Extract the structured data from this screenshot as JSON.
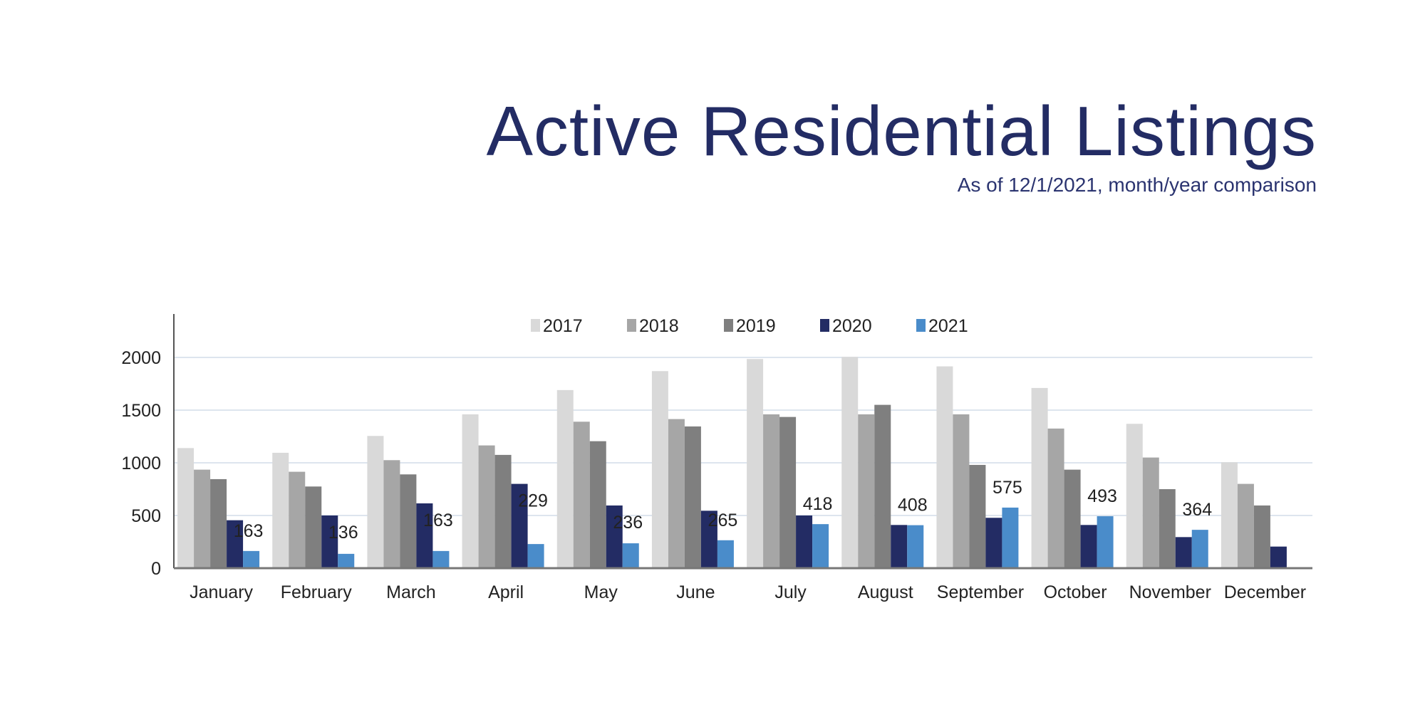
{
  "title": "Active Residential Listings",
  "subtitle": "As of 12/1/2021, month/year comparison",
  "chart_data": {
    "type": "bar",
    "title": "Active Residential Listings",
    "subtitle": "As of 12/1/2021, month/year comparison",
    "xlabel": "",
    "ylabel": "",
    "ylim": [
      0,
      2400
    ],
    "yticks": [
      0,
      500,
      1000,
      1500,
      2000
    ],
    "grid": true,
    "legend_position": "top",
    "categories": [
      "January",
      "February",
      "March",
      "April",
      "May",
      "June",
      "July",
      "August",
      "September",
      "October",
      "November",
      "December"
    ],
    "series": [
      {
        "name": "2017",
        "color": "#d9d9d9",
        "values": [
          1140,
          1095,
          1255,
          1460,
          1690,
          1870,
          1985,
          2005,
          1915,
          1710,
          1370,
          1005
        ]
      },
      {
        "name": "2018",
        "color": "#a6a6a6",
        "values": [
          935,
          915,
          1025,
          1165,
          1390,
          1415,
          1460,
          1460,
          1460,
          1325,
          1050,
          800
        ]
      },
      {
        "name": "2019",
        "color": "#7f7f7f",
        "values": [
          845,
          775,
          890,
          1075,
          1205,
          1345,
          1435,
          1550,
          980,
          935,
          750,
          595
        ]
      },
      {
        "name": "2020",
        "color": "#232c64",
        "values": [
          455,
          500,
          615,
          800,
          595,
          545,
          500,
          410,
          478,
          410,
          295,
          205
        ]
      },
      {
        "name": "2021",
        "color": "#4a8cca",
        "values": [
          163,
          136,
          163,
          229,
          236,
          265,
          418,
          408,
          575,
          493,
          364,
          null
        ],
        "data_labels": [
          "163",
          "136",
          "163",
          "229",
          "236",
          "265",
          "418",
          "408",
          "575",
          "493",
          "364",
          ""
        ]
      }
    ]
  }
}
